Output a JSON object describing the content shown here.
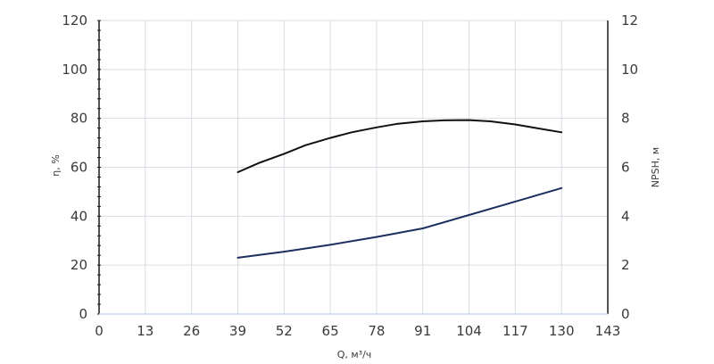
{
  "chart_data": {
    "type": "line",
    "title": "",
    "xlabel": "Q, м³/ч",
    "ylabel_left": "η, %",
    "ylabel_right": "NPSH, м",
    "x_ticks": [
      0,
      13,
      26,
      39,
      52,
      65,
      78,
      91,
      104,
      117,
      130,
      143
    ],
    "xlim": [
      0,
      143
    ],
    "ylim_left": [
      0,
      120
    ],
    "ylim_right": [
      0,
      12
    ],
    "left_ticks": [
      0,
      20,
      40,
      60,
      80,
      100,
      120
    ],
    "right_ticks": [
      0,
      2,
      4,
      6,
      8,
      10,
      12
    ],
    "grid": true,
    "series": [
      {
        "axis": "left",
        "color": "#111111",
        "x": [
          39,
          45,
          52,
          58,
          65,
          71,
          78,
          84,
          91,
          97,
          104,
          110,
          117,
          123,
          130
        ],
        "y": [
          58,
          61.8,
          65.5,
          69,
          72,
          74.3,
          76.3,
          77.8,
          78.8,
          79.2,
          79.3,
          78.8,
          77.5,
          76,
          74.3
        ]
      },
      {
        "axis": "right",
        "color": "#1c2f5e",
        "x": [
          39,
          52,
          65,
          78,
          91,
          104,
          117,
          130
        ],
        "y": [
          2.3,
          2.55,
          2.83,
          3.15,
          3.5,
          4.05,
          4.6,
          5.15
        ]
      }
    ]
  }
}
